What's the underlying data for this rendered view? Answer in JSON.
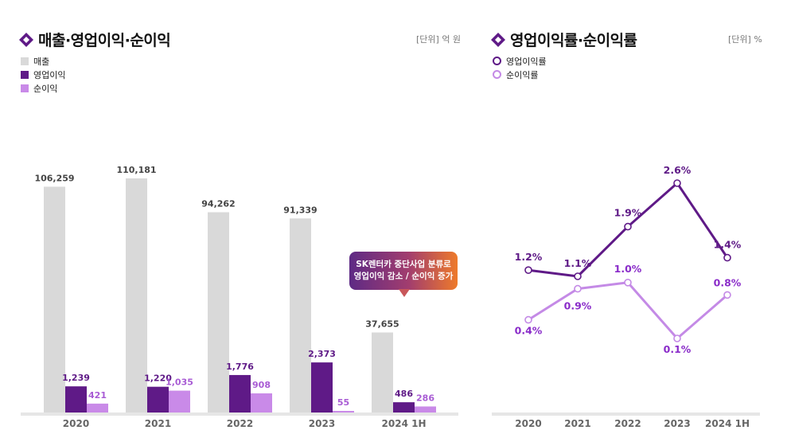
{
  "left": {
    "title": "매출·영업이익·순이익",
    "unit": "[단위] 억 원",
    "callout": {
      "line1": "SK렌터카 중단사업 분류로",
      "line2": "영업이익 감소 / 순이익 증가"
    }
  },
  "right": {
    "title": "영업이익률·순이익률",
    "unit": "[단위] %"
  },
  "colors": {
    "revenue": "#d9d9d9",
    "operating": "#5f1a87",
    "net": "#c98ae8",
    "net_line": "#c48ae6",
    "icon": "#5f1a87"
  },
  "chart_data": [
    {
      "type": "bar",
      "title": "매출·영업이익·순이익",
      "unit": "억 원",
      "categories": [
        "2020",
        "2021",
        "2022",
        "2023",
        "2024 1H"
      ],
      "series": [
        {
          "name": "매출",
          "values": [
            106259,
            110181,
            94262,
            91339,
            37655
          ],
          "labels": [
            "106,259",
            "110,181",
            "94,262",
            "91,339",
            "37,655"
          ]
        },
        {
          "name": "영업이익",
          "values": [
            1239,
            1220,
            1776,
            2373,
            486
          ],
          "labels": [
            "1,239",
            "1,220",
            "1,776",
            "2,373",
            "486"
          ]
        },
        {
          "name": "순이익",
          "values": [
            421,
            1035,
            908,
            55,
            286
          ],
          "labels": [
            "421",
            "1,035",
            "908",
            "55",
            "286"
          ]
        }
      ]
    },
    {
      "type": "line",
      "title": "영업이익률·순이익률",
      "unit": "%",
      "categories": [
        "2020",
        "2021",
        "2022",
        "2023",
        "2024 1H"
      ],
      "series": [
        {
          "name": "영업이익률",
          "values": [
            1.2,
            1.1,
            1.9,
            2.6,
            1.4
          ],
          "labels": [
            "1.2%",
            "1.1%",
            "1.9%",
            "2.6%",
            "1.4%"
          ]
        },
        {
          "name": "순이익률",
          "values": [
            0.4,
            0.9,
            1.0,
            0.1,
            0.8
          ],
          "labels": [
            "0.4%",
            "0.9%",
            "1.0%",
            "0.1%",
            "0.8%"
          ]
        }
      ]
    }
  ]
}
